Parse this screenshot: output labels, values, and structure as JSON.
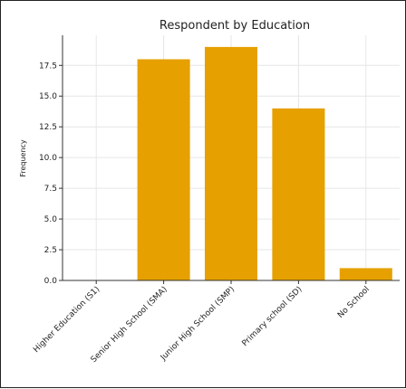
{
  "chart_data": {
    "type": "bar",
    "title": "Respondent by Education",
    "xlabel": "",
    "ylabel": "Frequency",
    "categories": [
      "Higher Education (S1)",
      "Senior High School (SMA)",
      "Junior High School (SMP)",
      "Primary school (SD)",
      "No School"
    ],
    "values": [
      0,
      18,
      19,
      14,
      1
    ],
    "ylim": [
      0,
      19.95
    ],
    "yticks": [
      0.0,
      2.5,
      5.0,
      7.5,
      10.0,
      12.5,
      15.0,
      17.5
    ],
    "ytick_labels": [
      "0.0",
      "2.5",
      "5.0",
      "7.5",
      "10.0",
      "12.5",
      "15.0",
      "17.5"
    ],
    "grid": true,
    "bar_color": "#E6A000"
  }
}
